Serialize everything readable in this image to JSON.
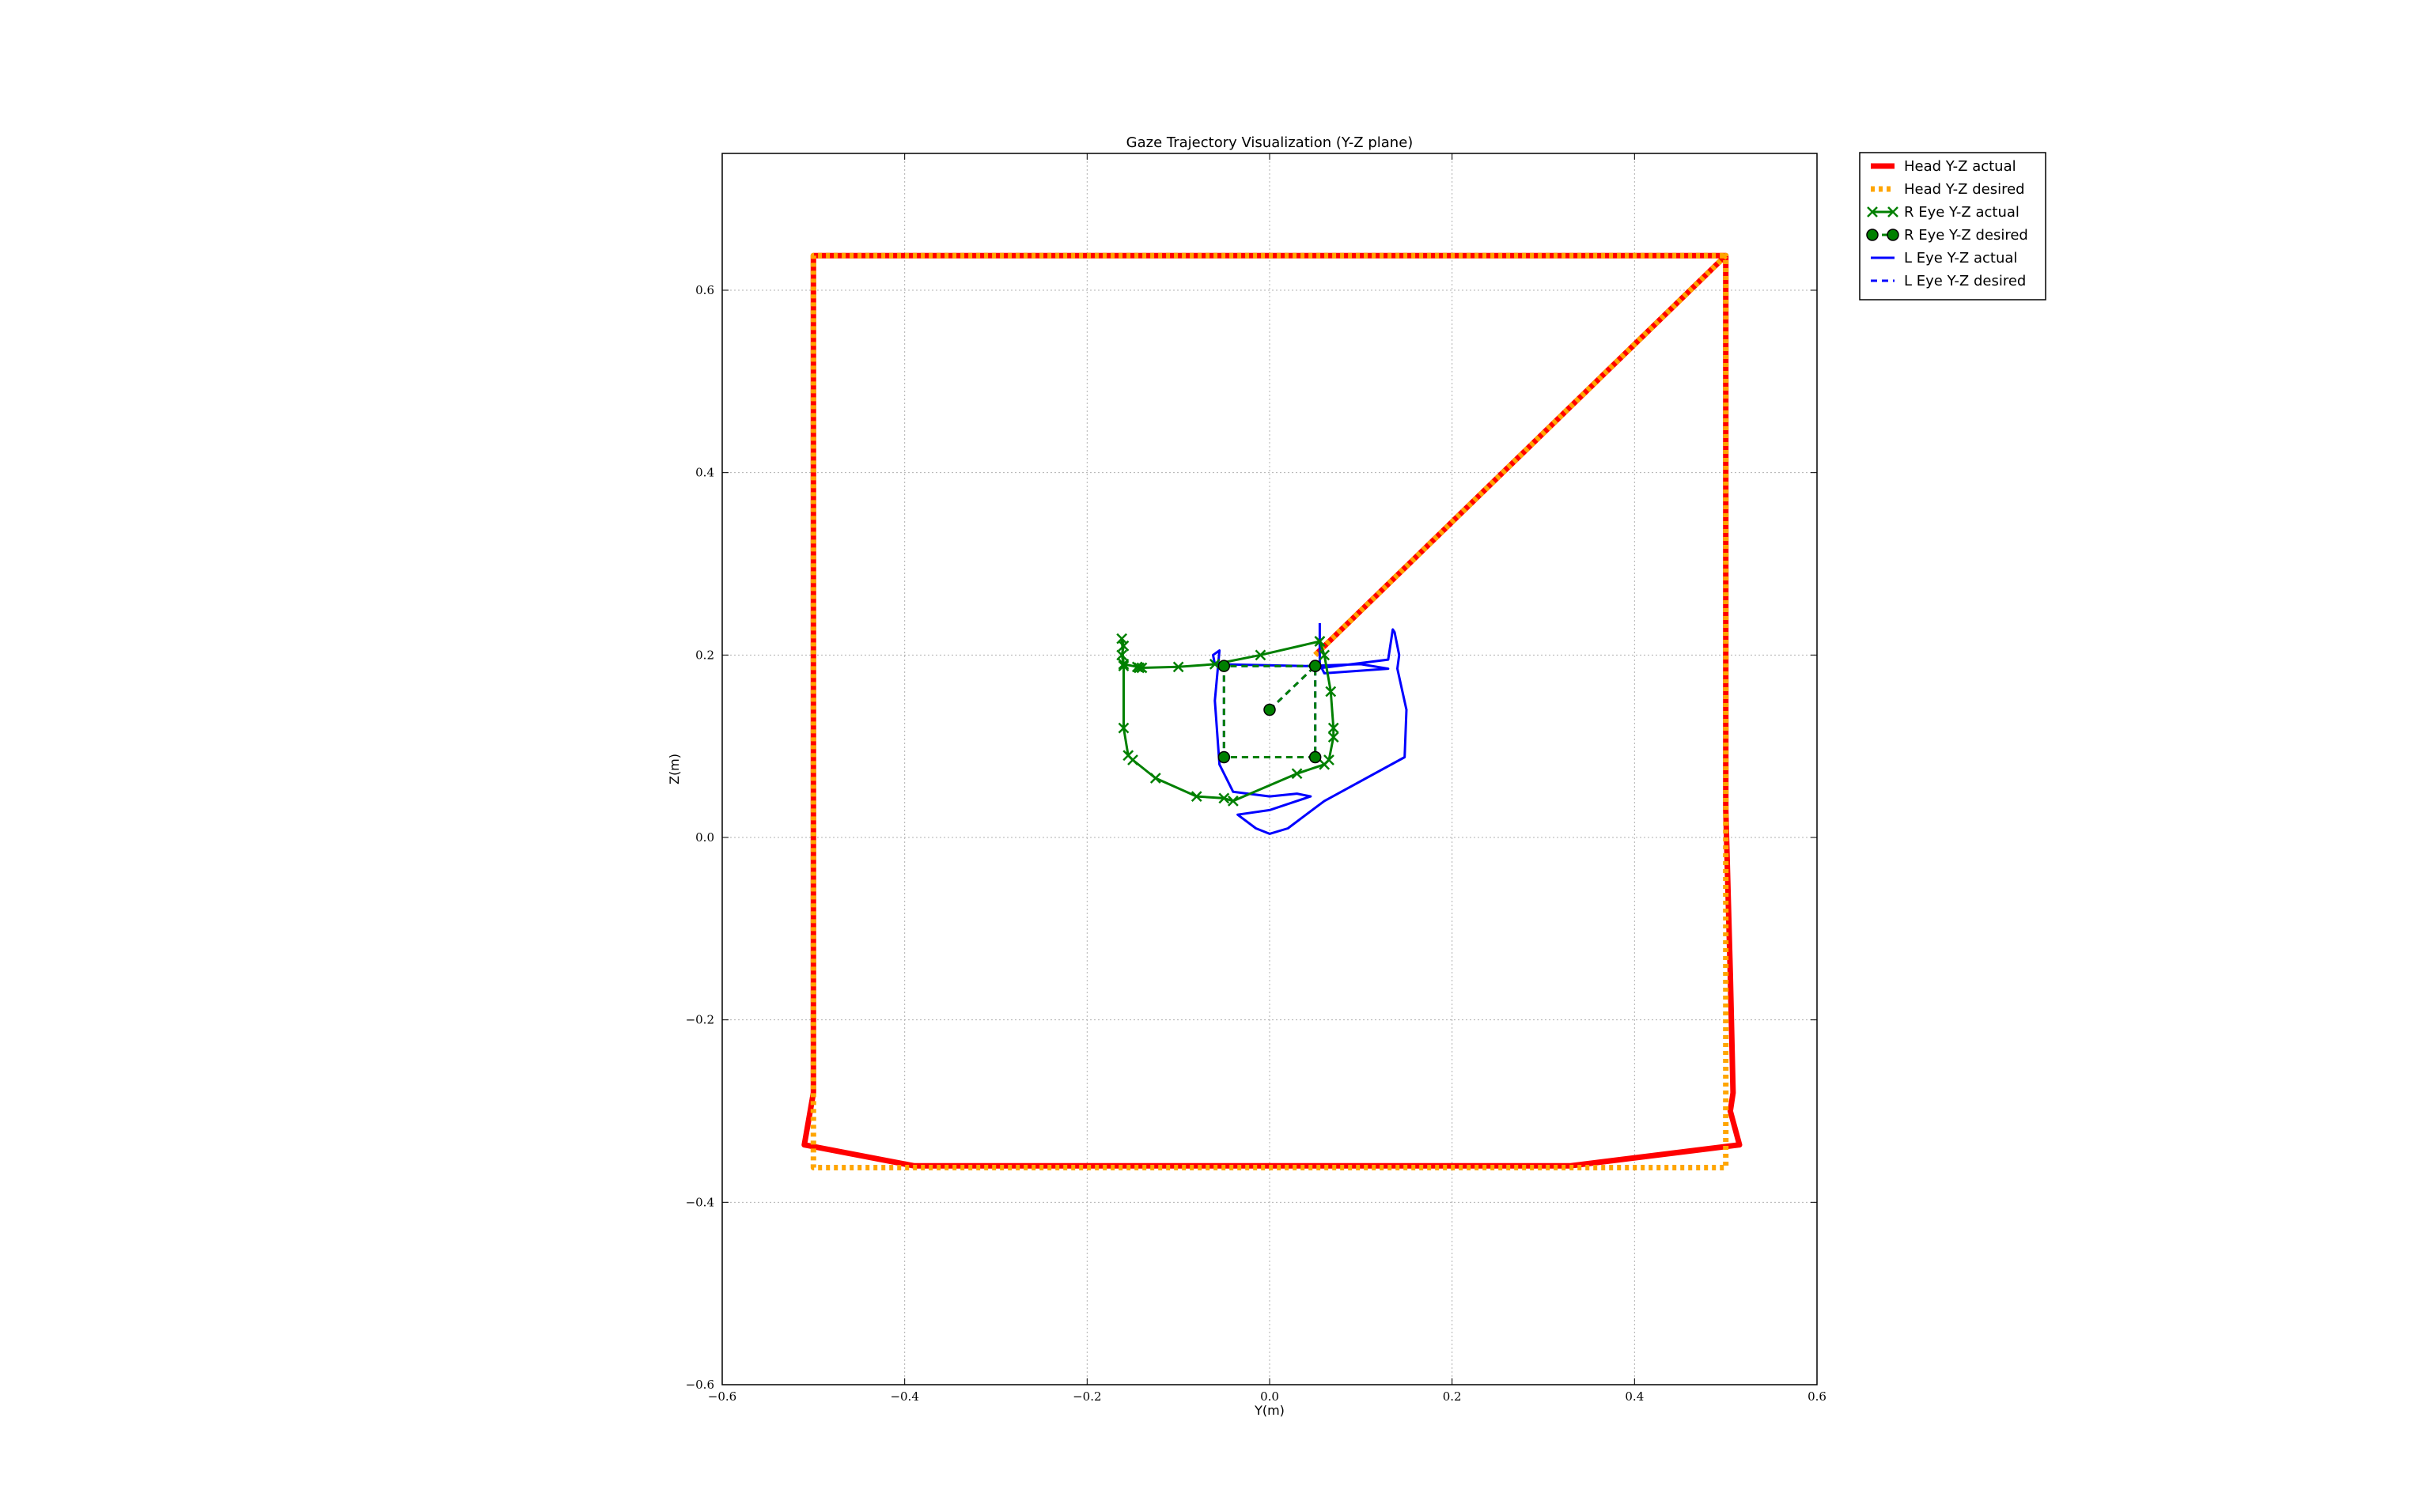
{
  "chart_data": {
    "type": "line",
    "title": "Gaze Trajectory Visualization (Y-Z plane)",
    "xlabel": "Y(m)",
    "ylabel": "Z(m)",
    "xlim": [
      -0.6,
      0.6
    ],
    "ylim": [
      -0.6,
      0.75
    ],
    "xticks": [
      -0.6,
      -0.4,
      -0.2,
      0.0,
      0.2,
      0.4,
      0.6
    ],
    "yticks": [
      -0.6,
      -0.4,
      -0.2,
      0.0,
      0.2,
      0.4,
      0.6
    ],
    "xtick_labels": [
      "−0.6",
      "−0.4",
      "−0.2",
      "0.0",
      "0.2",
      "0.4",
      "0.6"
    ],
    "ytick_labels": [
      "−0.6",
      "−0.4",
      "−0.2",
      "0.0",
      "0.2",
      "0.4",
      "0.6"
    ],
    "grid": true,
    "legend_position": "outside-top-right",
    "series": [
      {
        "name": "Head Y-Z actual",
        "color": "#ff0000",
        "style": "solid",
        "marker": "none",
        "x": [
          0.05,
          0.5,
          0.5,
          0.5,
          0.505,
          0.508,
          0.505,
          0.515,
          0.33,
          -0.39,
          -0.51,
          -0.5,
          -0.5,
          0.5,
          0.5
        ],
        "y": [
          0.2,
          0.638,
          0.638,
          0.03,
          -0.15,
          -0.28,
          -0.3,
          -0.337,
          -0.36,
          -0.36,
          -0.337,
          -0.28,
          0.638,
          0.638,
          0.638
        ]
      },
      {
        "name": "Head Y-Z desired",
        "color": "#ffa500",
        "style": "dotted",
        "marker": "none",
        "x": [
          0.05,
          0.5,
          0.5,
          -0.5,
          -0.5,
          0.5
        ],
        "y": [
          0.2,
          0.638,
          -0.362,
          -0.362,
          0.638,
          0.638
        ]
      },
      {
        "name": "R Eye Y-Z actual",
        "color": "#008000",
        "style": "solid",
        "marker": "x",
        "x": [
          0.055,
          -0.01,
          -0.06,
          -0.1,
          -0.14,
          -0.143,
          -0.145,
          -0.16,
          -0.162,
          -0.16,
          -0.162,
          -0.16,
          -0.16,
          -0.155,
          -0.15,
          -0.125,
          -0.08,
          -0.05,
          -0.04,
          0.03,
          0.06,
          0.065,
          0.07,
          0.07,
          0.067,
          0.06,
          0.055
        ],
        "y": [
          0.215,
          0.2,
          0.19,
          0.187,
          0.186,
          0.186,
          0.187,
          0.19,
          0.2,
          0.21,
          0.218,
          0.188,
          0.12,
          0.09,
          0.085,
          0.065,
          0.045,
          0.043,
          0.04,
          0.07,
          0.08,
          0.085,
          0.11,
          0.12,
          0.16,
          0.2,
          0.215
        ]
      },
      {
        "name": "R Eye Y-Z desired",
        "color": "#008000",
        "style": "dashed",
        "marker": "o",
        "x": [
          0.0,
          0.05,
          0.05,
          -0.05,
          -0.05,
          0.05
        ],
        "y": [
          0.14,
          0.188,
          0.088,
          0.088,
          0.188,
          0.188
        ]
      },
      {
        "name": "L Eye Y-Z actual",
        "color": "#0000ff",
        "style": "solid",
        "marker": "none",
        "x": [
          0.055,
          0.055,
          0.055,
          0.06,
          0.13,
          0.1,
          0.04,
          -0.06,
          -0.062,
          -0.055,
          -0.06,
          -0.055,
          -0.04,
          0.0,
          0.03,
          0.045,
          0.0,
          -0.035,
          -0.015,
          0.0,
          0.02,
          0.04,
          0.06,
          0.148,
          0.15,
          0.14,
          0.142,
          0.137,
          0.135,
          0.13,
          0.05
        ],
        "y": [
          0.235,
          0.2,
          0.19,
          0.18,
          0.185,
          0.19,
          0.188,
          0.19,
          0.2,
          0.205,
          0.15,
          0.08,
          0.05,
          0.045,
          0.048,
          0.045,
          0.03,
          0.025,
          0.01,
          0.004,
          0.01,
          0.025,
          0.04,
          0.088,
          0.14,
          0.185,
          0.2,
          0.225,
          0.228,
          0.195,
          0.185
        ]
      },
      {
        "name": "L Eye Y-Z desired",
        "color": "#0000ff",
        "style": "dashed",
        "marker": "none",
        "x": [
          0.0,
          0.05,
          0.05,
          -0.05,
          -0.05,
          0.05
        ],
        "y": [
          0.14,
          0.188,
          0.088,
          0.088,
          0.188,
          0.188
        ]
      }
    ]
  }
}
